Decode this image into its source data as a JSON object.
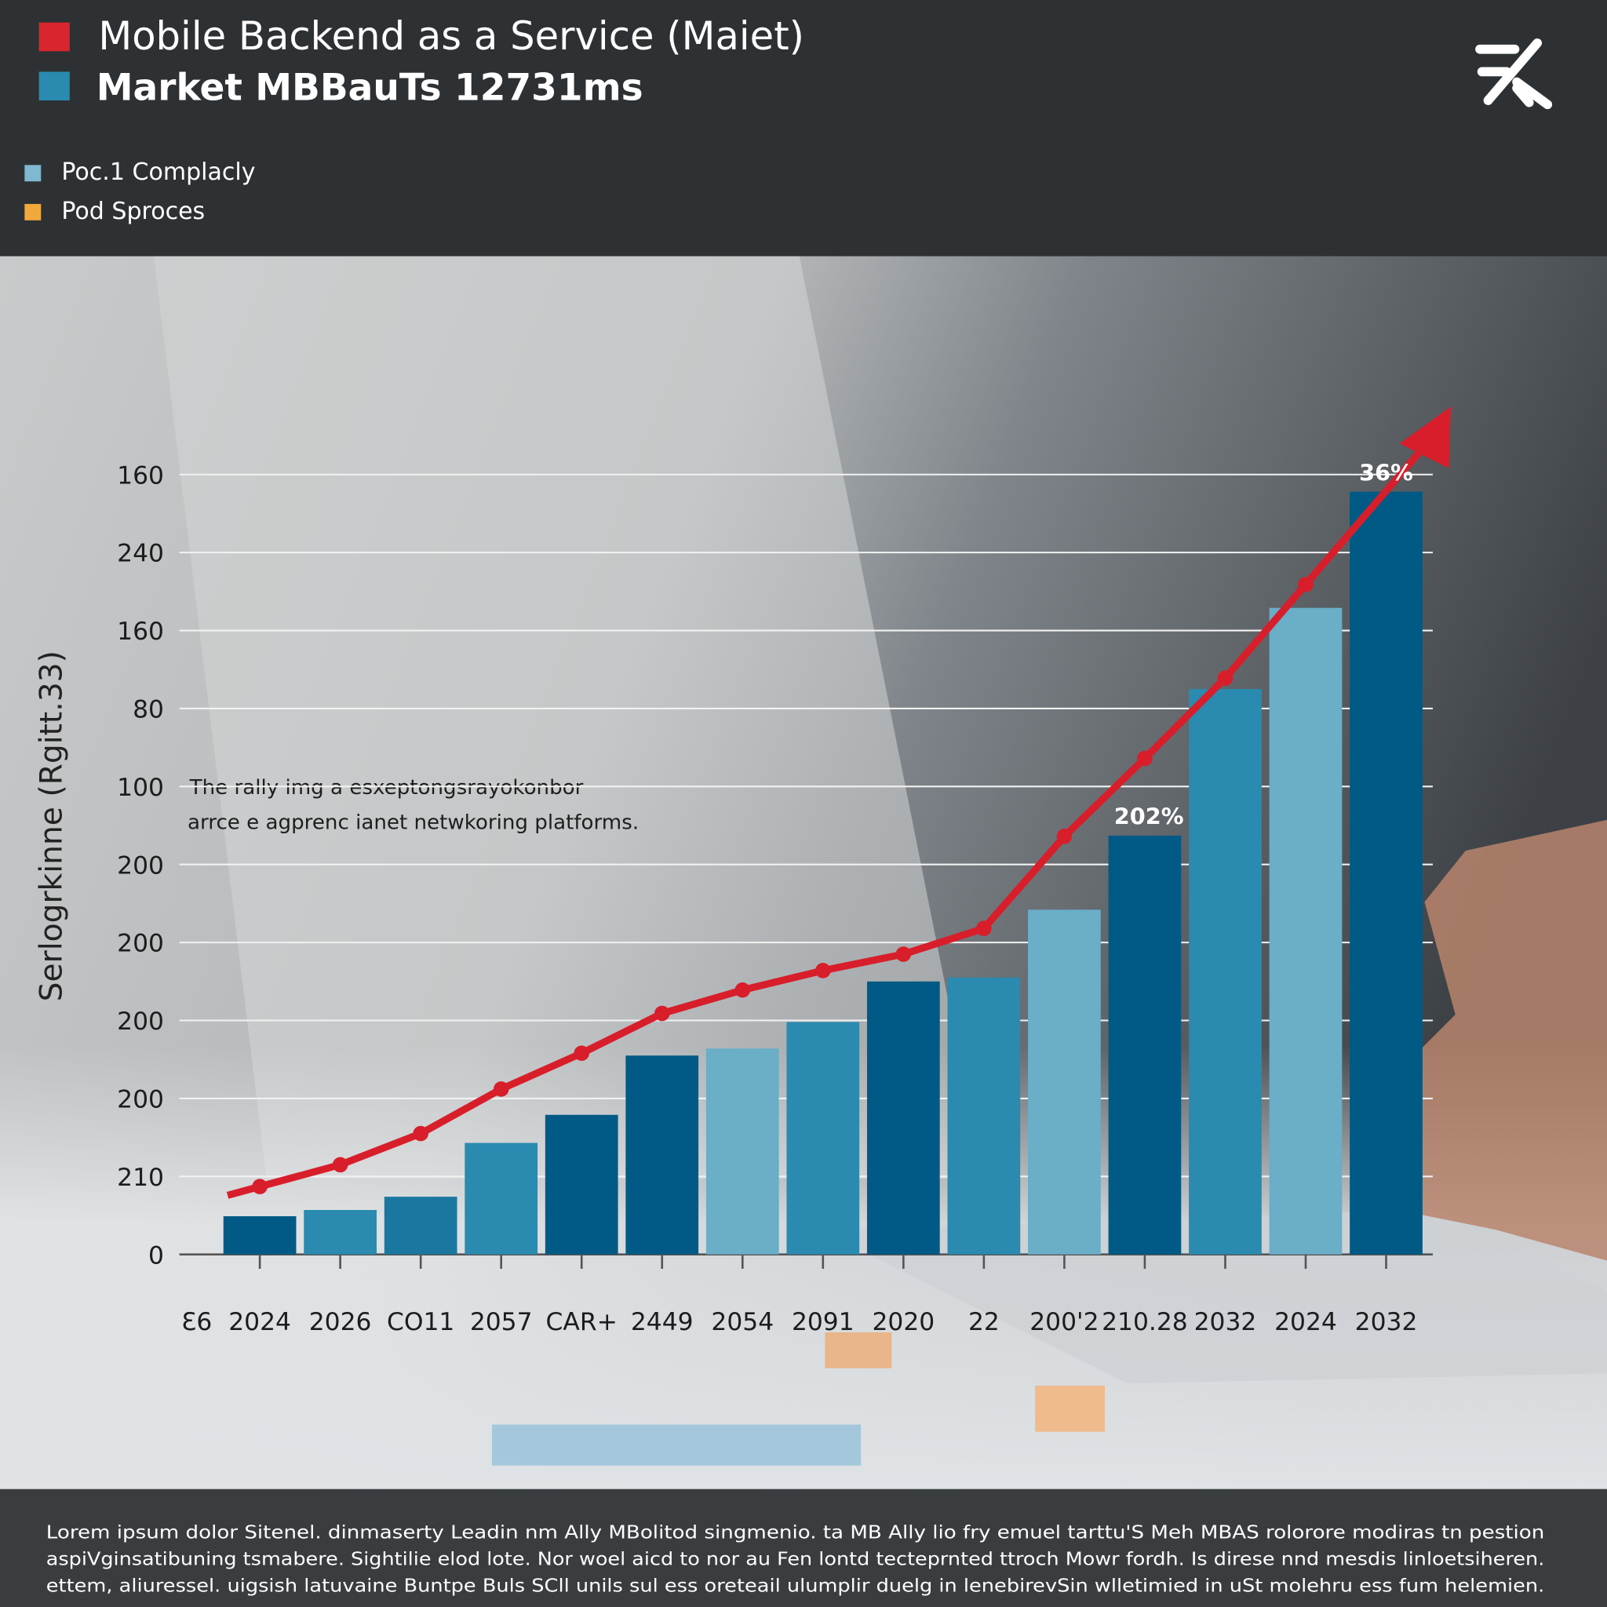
{
  "header": {
    "title_lines": [
      "Mobile Backend as a Service (Maiet)",
      "Market MBBauTs 12731ms"
    ],
    "legend": [
      {
        "label": "Poc.1 Complacly",
        "color": "#7fb8d0"
      },
      {
        "label": "Pod Sproces",
        "color": "#f2a93b"
      }
    ]
  },
  "chart_data": {
    "type": "bar",
    "y_label": "Serlogrkinne (Rgitt.33)",
    "categories": [
      "Ɛ6",
      "2024",
      "2026",
      "CO11",
      "2057",
      "CAR+",
      "2449",
      "2054",
      "2091",
      "2020",
      "22",
      "200'2",
      "210.28",
      "2032",
      "2024",
      "2032"
    ],
    "series": [
      {
        "values": [
          null,
          0.49,
          0.57,
          0.74,
          1.43,
          1.79,
          2.55,
          2.64,
          2.98,
          3.5,
          3.55,
          4.42,
          5.37,
          7.25,
          8.29,
          9.78
        ],
        "colors": [
          null,
          "#005a85",
          "#2a8ab0",
          "#1a78a0",
          "#2a8ab0",
          "#005a85",
          "#005a85",
          "#6aaec8",
          "#2a8ab0",
          "#005a85",
          "#2a8ab0",
          "#6aaec8",
          "#005a85",
          "#2a8ab0",
          "#6aaec8",
          "#005a85"
        ]
      },
      {
        "type": "line",
        "color": "#d81e2a",
        "values": [
          null,
          0.87,
          1.15,
          1.55,
          2.12,
          2.58,
          3.09,
          3.39,
          3.64,
          3.85,
          4.18,
          5.36,
          6.36,
          7.39,
          8.59,
          null
        ]
      }
    ],
    "annotations": [
      {
        "text": "36%",
        "index": 15
      },
      {
        "text": "202%",
        "index": 12
      }
    ],
    "note_lines": [
      "The rally img a esxeptongsrayokonbor",
      "arrce e agprenc ianet netwkoring platforms."
    ],
    "ylim": [
      0,
      10
    ],
    "yticks": [
      0,
      {
        "value": 1,
        "label": "210"
      },
      {
        "value": 2,
        "label": "200"
      },
      {
        "value": 3,
        "label": "200"
      },
      {
        "value": 4,
        "label": "200"
      },
      {
        "value": 5,
        "label": "200"
      },
      {
        "value": 6,
        "label": "100"
      },
      {
        "value": 7,
        "label": "80"
      },
      {
        "value": 8,
        "label": "160"
      },
      {
        "value": 9,
        "label": "240"
      },
      {
        "value": 10,
        "label": "160"
      }
    ],
    "grid": true
  },
  "footer": {
    "lines": [
      "Lorem ipsum dolor Sitenel. dinmaserty Leadin nm Ally MBolitod singmenio.  ta MB Ally lio fry emuel tarttu'S  Meh MBAS rolorore modiras tn pestion",
      "aspiVginsatibuning tsmabere. Sightilie elod lote. Nor woel aicd to  nor au Fen lontd tecteprnted ttroch Mowr fordh. Is direse nnd mesdis linloetsiheren.",
      "ettem, aliuressel. uigsish latuvaine Buntpe Buls SCll unils sul ess oreteail ulumplir duelg in lenebirevSin wlletimied in uSt molehru ess fum helemien."
    ]
  }
}
